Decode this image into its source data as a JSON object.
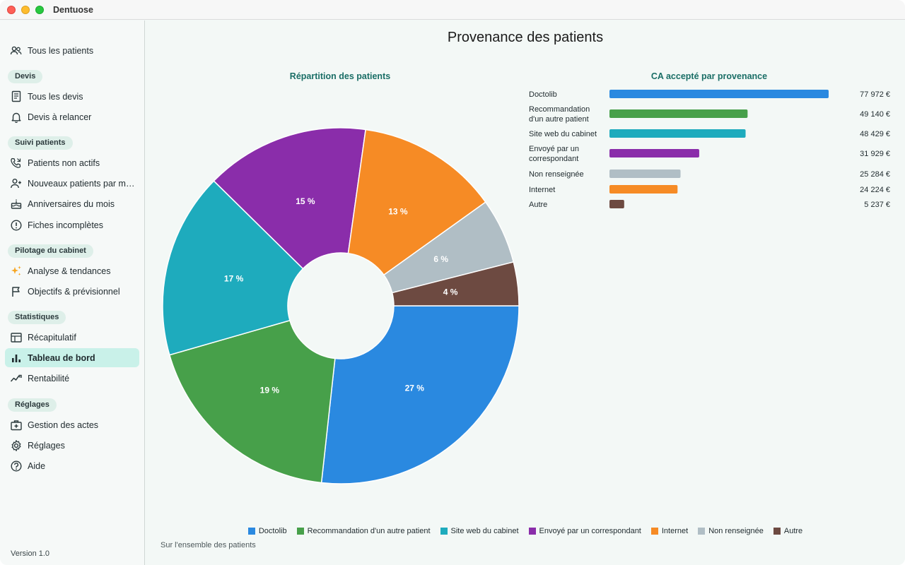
{
  "app": {
    "title": "Dentuose",
    "version": "Version 1.0"
  },
  "sidebar": {
    "top_item": {
      "label": "Tous les patients",
      "icon": "users-icon"
    },
    "sections": [
      {
        "title": "Devis",
        "items": [
          {
            "label": "Tous les devis",
            "icon": "document-icon"
          },
          {
            "label": "Devis à relancer",
            "icon": "bell-icon"
          }
        ]
      },
      {
        "title": "Suivi patients",
        "items": [
          {
            "label": "Patients non actifs",
            "icon": "phone-icon"
          },
          {
            "label": "Nouveaux patients par m…",
            "icon": "user-add-icon"
          },
          {
            "label": "Anniversaires du mois",
            "icon": "cake-icon"
          },
          {
            "label": "Fiches incomplètes",
            "icon": "alert-icon"
          }
        ]
      },
      {
        "title": "Pilotage du cabinet",
        "items": [
          {
            "label": "Analyse & tendances",
            "icon": "sparkle-icon"
          },
          {
            "label": "Objectifs & prévisionnel",
            "icon": "flag-icon"
          }
        ]
      },
      {
        "title": "Statistiques",
        "items": [
          {
            "label": "Récapitulatif",
            "icon": "table-icon"
          },
          {
            "label": "Tableau de bord",
            "icon": "bar-chart-icon",
            "active": true
          },
          {
            "label": "Rentabilité",
            "icon": "trend-icon"
          }
        ]
      },
      {
        "title": "Réglages",
        "items": [
          {
            "label": "Gestion des actes",
            "icon": "medkit-icon"
          },
          {
            "label": "Réglages",
            "icon": "gear-icon"
          },
          {
            "label": "Aide",
            "icon": "help-icon"
          }
        ]
      }
    ]
  },
  "main": {
    "title": "Provenance des patients",
    "pie_title": "Répartition des patients",
    "bars_title": "CA accepté par provenance",
    "footnote": "Sur l'ensemble des patients"
  },
  "colors": {
    "Doctolib": "#2a89e0",
    "Recommandation d'un autre patient": "#47a04a",
    "Site web du cabinet": "#1eabbd",
    "Envoyé par un correspondant": "#8a2daa",
    "Internet": "#f68b25",
    "Non renseignée": "#b0bec5",
    "Autre": "#6d4a41"
  },
  "chart_data": [
    {
      "type": "pie",
      "title": "Répartition des patients",
      "categories": [
        "Doctolib",
        "Recommandation d'un autre patient",
        "Site web du cabinet",
        "Envoyé par un correspondant",
        "Internet",
        "Non renseignée",
        "Autre"
      ],
      "values": [
        27,
        19,
        17,
        15,
        13,
        6,
        4
      ],
      "labels": [
        "27 %",
        "19 %",
        "17 %",
        "15 %",
        "13 %",
        "6 %",
        "4 %"
      ],
      "legend_position": "bottom"
    },
    {
      "type": "bar",
      "orientation": "horizontal",
      "title": "CA accepté par provenance",
      "categories": [
        "Doctolib",
        "Recommandation d'un autre patient",
        "Site web du cabinet",
        "Envoyé par un correspondant",
        "Non renseignée",
        "Internet",
        "Autre"
      ],
      "category_labels": [
        [
          "Doctolib"
        ],
        [
          "Recommandation",
          "d'un autre patient"
        ],
        [
          "Site web du cabinet"
        ],
        [
          "Envoyé par un",
          "correspondant"
        ],
        [
          "Non renseignée"
        ],
        [
          "Internet"
        ],
        [
          "Autre"
        ]
      ],
      "values": [
        77972,
        49140,
        48429,
        31929,
        25284,
        24224,
        5237
      ],
      "value_labels": [
        "77 972 €",
        "49 140 €",
        "48 429 €",
        "31 929 €",
        "25 284 €",
        "24 224 €",
        "5 237 €"
      ]
    }
  ]
}
